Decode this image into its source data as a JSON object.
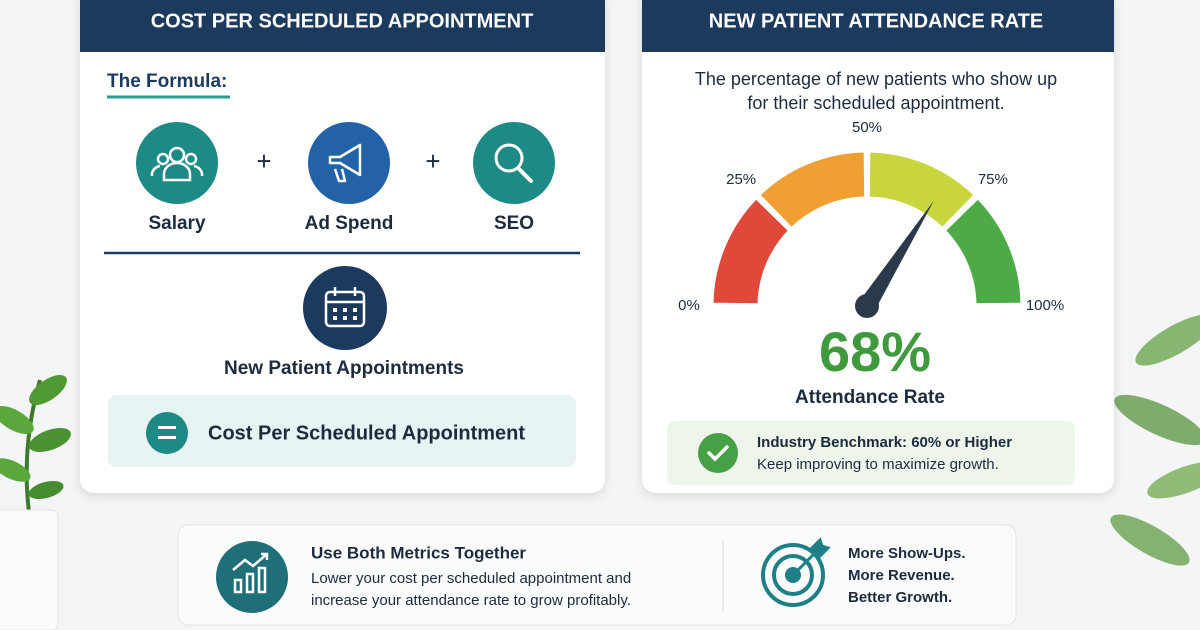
{
  "left_card": {
    "title": "COST PER SCHEDULED APPOINTMENT",
    "formula_label": "The Formula:",
    "terms": [
      "Salary",
      "Ad Spend",
      "SEO"
    ],
    "denominator": "New Patient Appointments",
    "result": "Cost Per Scheduled Appointment"
  },
  "right_card": {
    "title": "NEW PATIENT ATTENDANCE RATE",
    "description": [
      "The percentage of new patients who show up",
      "for their scheduled appointment."
    ],
    "gauge": {
      "range": [
        0,
        100
      ],
      "ticks": [
        {
          "value": 0,
          "label": "0%"
        },
        {
          "value": 25,
          "label": "25%"
        },
        {
          "value": 50,
          "label": "50%"
        },
        {
          "value": 75,
          "label": "75%"
        },
        {
          "value": 100,
          "label": "100%"
        }
      ],
      "colors": [
        "#e0483a",
        "#f0a032",
        "#c8d53c",
        "#4caa47"
      ],
      "value": 68,
      "value_label": "68%",
      "caption": "Attendance Rate"
    },
    "benchmark": {
      "title": "Industry Benchmark: 60% or Higher",
      "note": "Keep improving to maximize growth."
    }
  },
  "footer": {
    "title": "Use Both Metrics Together",
    "text": [
      "Lower your cost per scheduled appointment and",
      "increase your attendance rate to grow profitably."
    ],
    "outcomes": [
      "More Show-Ups.",
      "More Revenue.",
      "Better Growth."
    ]
  }
}
